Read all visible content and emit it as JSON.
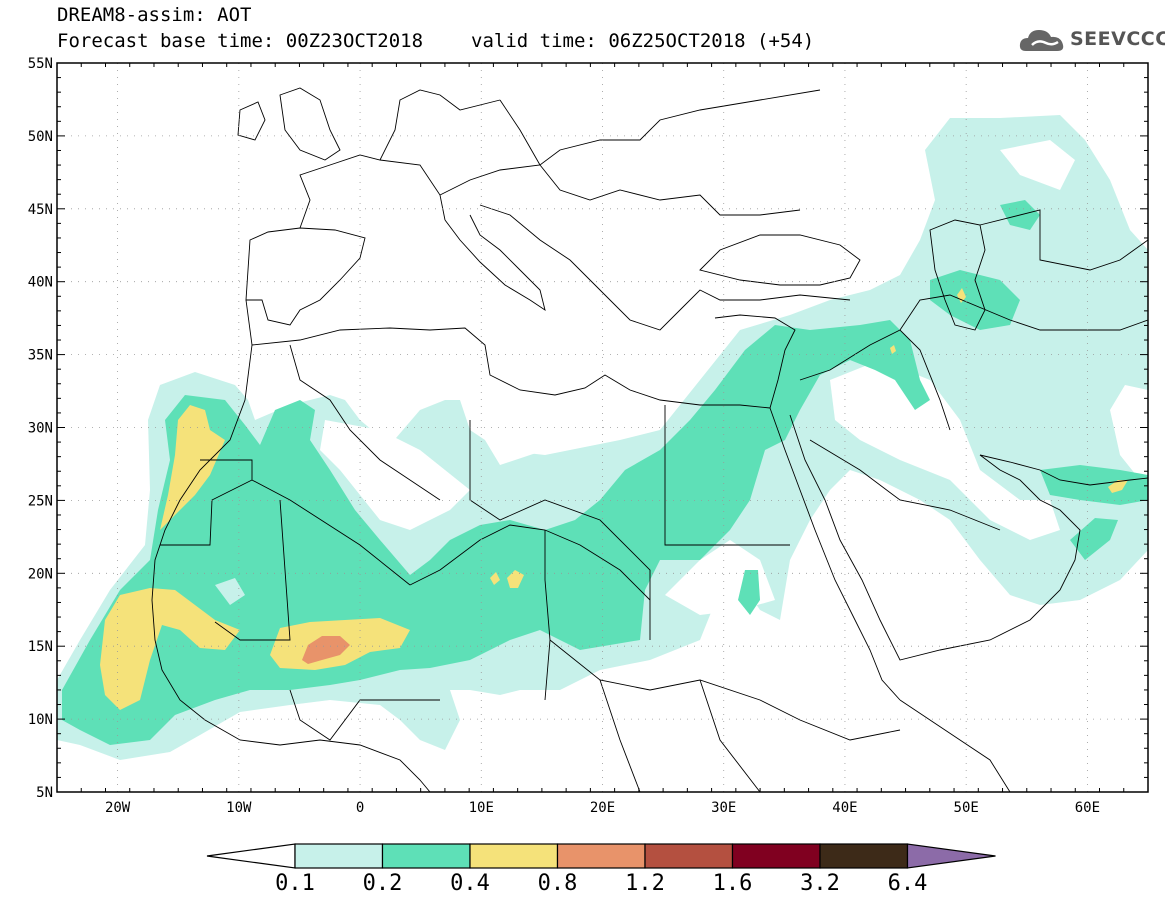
{
  "header": {
    "title_line1": "DREAM8-assim: AOT",
    "base_time": "Forecast base time: 00Z23OCT2018",
    "valid_time": "valid time: 06Z25OCT2018 (+54)"
  },
  "logo": {
    "text": "SEEVCCC",
    "icon": "cloud-icon"
  },
  "map": {
    "extent": {
      "lon_min": -25,
      "lon_max": 65,
      "lat_min": 5,
      "lat_max": 55
    },
    "lat_labels": [
      "55N",
      "50N",
      "45N",
      "40N",
      "35N",
      "30N",
      "25N",
      "20N",
      "15N",
      "10N",
      "5N"
    ],
    "lon_labels": [
      "20W",
      "10W",
      "0",
      "10E",
      "20E",
      "30E",
      "40E",
      "50E",
      "60E"
    ]
  },
  "colorbar": {
    "levels": [
      "0.1",
      "0.2",
      "0.4",
      "0.8",
      "1.2",
      "1.6",
      "3.2",
      "6.4"
    ],
    "colors": [
      "#ffffff",
      "#c7f1ea",
      "#5ee0b7",
      "#f5e27a",
      "#e8936a",
      "#b45040",
      "#800020",
      "#3d2a18",
      "#8c6ba8"
    ]
  }
}
